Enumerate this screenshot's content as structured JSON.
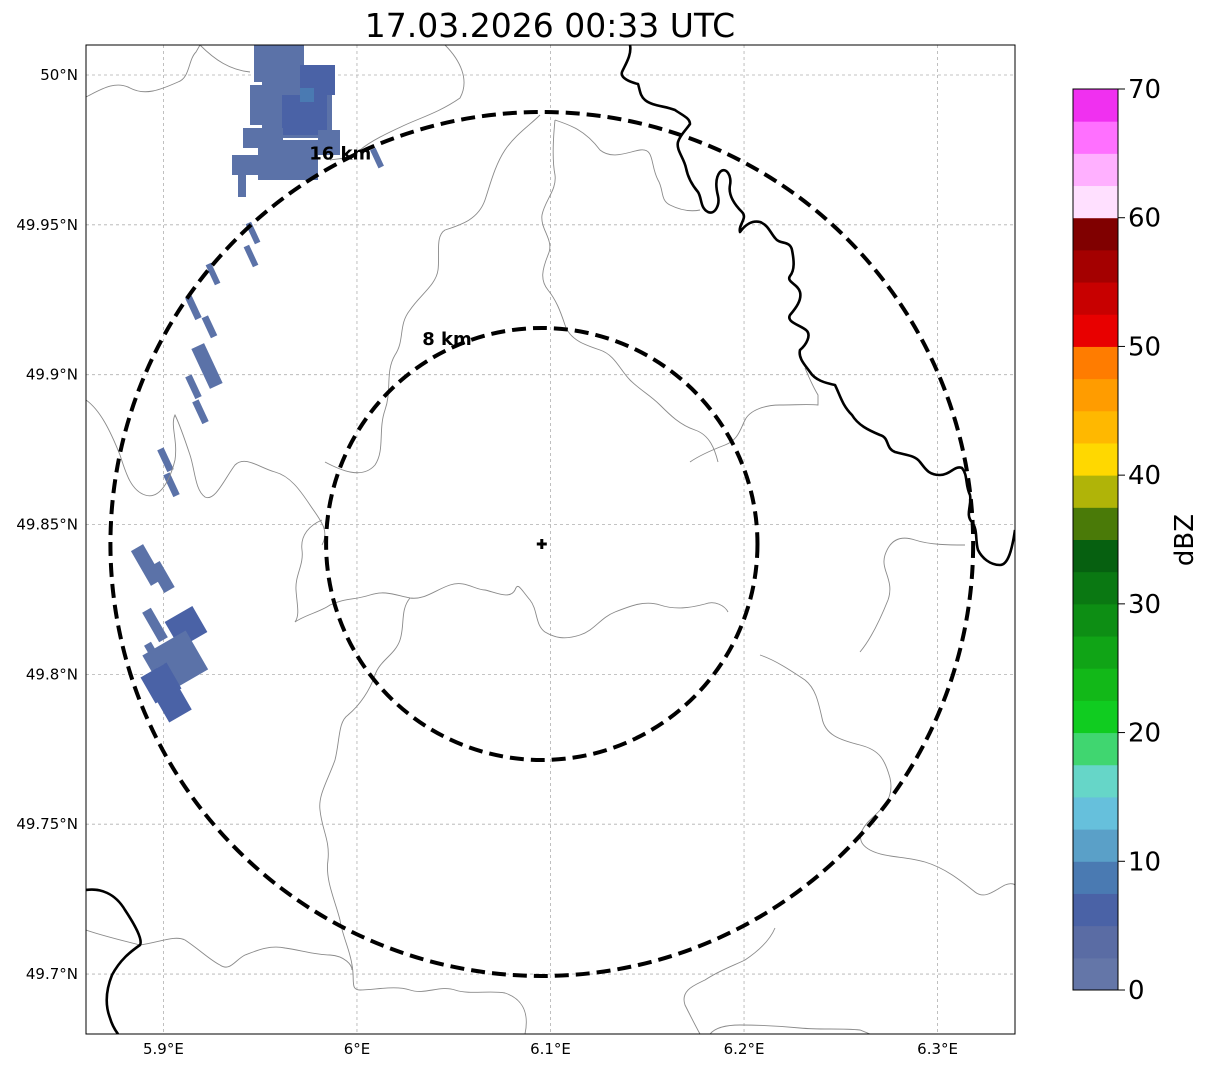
{
  "map": {
    "title": "17.03.2026 00:33 UTC",
    "extent": {
      "lon_min": 5.86,
      "lon_max": 6.34,
      "lat_min": 49.68,
      "lat_max": 50.01
    },
    "lon_ticks": [
      {
        "value": 5.9,
        "label": "5.9°E"
      },
      {
        "value": 6.0,
        "label": "6°E"
      },
      {
        "value": 6.1,
        "label": "6.1°E"
      },
      {
        "value": 6.2,
        "label": "6.2°E"
      },
      {
        "value": 6.3,
        "label": "6.3°E"
      }
    ],
    "lat_ticks": [
      {
        "value": 50.0,
        "label": "50°N"
      },
      {
        "value": 49.95,
        "label": "49.95°N"
      },
      {
        "value": 49.9,
        "label": "49.9°N"
      },
      {
        "value": 49.85,
        "label": "49.85°N"
      },
      {
        "value": 49.8,
        "label": "49.8°N"
      },
      {
        "value": 49.75,
        "label": "49.75°N"
      },
      {
        "value": 49.7,
        "label": "49.7°N"
      }
    ],
    "gridlines": true,
    "radar_site": {
      "lon": 6.0955,
      "lat": 49.8435
    },
    "rings": [
      {
        "radius_km": 8,
        "label": "8 km"
      },
      {
        "radius_km": 16,
        "label": "16 km"
      }
    ],
    "echo_color": "#5b72a8",
    "echo_color_dark": "#4a62a6"
  },
  "colorbar": {
    "label": "dBZ",
    "min": 0,
    "max": 70,
    "step": 2.5,
    "tick_labels": [
      "0",
      "10",
      "20",
      "30",
      "40",
      "50",
      "60",
      "70"
    ],
    "colors": [
      "#6476a8",
      "#5a6ca4",
      "#4a62a6",
      "#4a7ab2",
      "#5aa0c8",
      "#66c0dc",
      "#66d6c8",
      "#40d670",
      "#10cc20",
      "#12b818",
      "#10a416",
      "#0d8e14",
      "#0a7812",
      "#066010",
      "#4a7a08",
      "#b0b408",
      "#ffd800",
      "#ffb800",
      "#ff9c00",
      "#ff7c00",
      "#e80000",
      "#c80000",
      "#a40000",
      "#800000",
      "#ffe0ff",
      "#ffb0ff",
      "#ff70ff",
      "#f030f0"
    ]
  }
}
